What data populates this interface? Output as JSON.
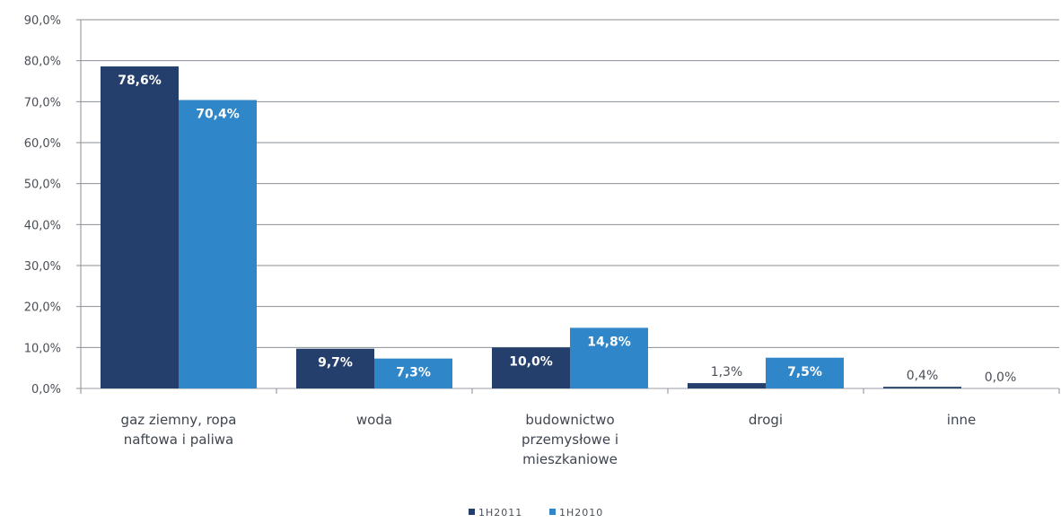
{
  "chart_data": {
    "type": "bar",
    "title": "",
    "xlabel": "",
    "ylabel": "",
    "ylim": [
      0,
      90
    ],
    "y_ticks": [
      "0,0%",
      "10,0%",
      "20,0%",
      "30,0%",
      "40,0%",
      "50,0%",
      "60,0%",
      "70,0%",
      "80,0%",
      "90,0%"
    ],
    "grid": true,
    "legend_position": "bottom",
    "categories": [
      [
        "gaz ziemny, ropa",
        "naftowa i paliwa"
      ],
      [
        "woda"
      ],
      [
        "budownictwo",
        "przemysłowe i",
        "mieszkaniowe"
      ],
      [
        "drogi"
      ],
      [
        "inne"
      ]
    ],
    "series": [
      {
        "name": "1H2011",
        "color": "#243f6b",
        "values": [
          78.6,
          9.7,
          10.0,
          1.3,
          0.4
        ],
        "labels": [
          "78,6%",
          "9,7%",
          "10,0%",
          "1,3%",
          "0,4%"
        ]
      },
      {
        "name": "1H2010",
        "color": "#2f86c9",
        "values": [
          70.4,
          7.3,
          14.8,
          7.5,
          0.0
        ],
        "labels": [
          "70,4%",
          "7,3%",
          "14,8%",
          "7,5%",
          "0,0%"
        ]
      }
    ]
  }
}
